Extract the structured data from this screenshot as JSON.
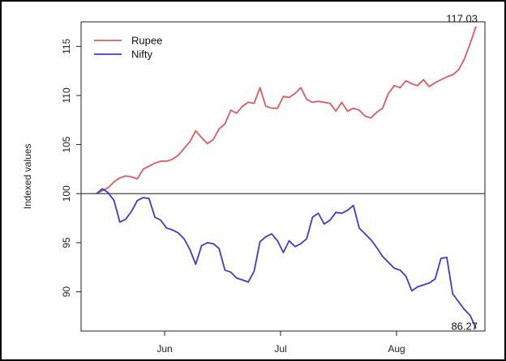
{
  "chart_data": {
    "type": "line",
    "title": "",
    "xlabel": "",
    "ylabel": "Indexed values",
    "x_ticks": [
      "Jun",
      "Jul",
      "Aug"
    ],
    "y_ticks": [
      90,
      95,
      100,
      105,
      110,
      115
    ],
    "ylim": [
      86,
      117.5
    ],
    "reference_line": 100,
    "grid": false,
    "legend_position": "top-left",
    "series": [
      {
        "name": "Rupee",
        "color": "#e0595e",
        "end_label": "117.03",
        "values": [
          100,
          100.3,
          100.6,
          101.2,
          101.6,
          101.8,
          101.7,
          101.5,
          102.5,
          102.8,
          103.1,
          103.3,
          103.3,
          103.5,
          103.9,
          104.6,
          105.3,
          106.4,
          105.7,
          105.1,
          105.5,
          106.6,
          107.1,
          108.5,
          108.2,
          108.9,
          109.3,
          109.2,
          110.8,
          108.9,
          108.7,
          108.7,
          109.9,
          109.8,
          110.2,
          110.8,
          109.6,
          109.3,
          109.4,
          109.3,
          109.2,
          108.4,
          109.3,
          108.4,
          108.7,
          108.5,
          107.9,
          107.7,
          108.3,
          108.7,
          110.2,
          111.0,
          110.8,
          111.5,
          111.2,
          111.0,
          111.6,
          110.9,
          111.3,
          111.6,
          111.9,
          112.1,
          112.6,
          113.7,
          115.3,
          117.03
        ]
      },
      {
        "name": "Nifty",
        "color": "#3b3bd4",
        "end_label": "86.27",
        "values": [
          100,
          100.5,
          100.1,
          99.3,
          97.1,
          97.4,
          98.2,
          99.3,
          99.6,
          99.5,
          97.6,
          97.3,
          96.5,
          96.3,
          96.0,
          95.4,
          94.3,
          92.8,
          94.7,
          95.0,
          94.9,
          94.4,
          92.2,
          92.0,
          91.4,
          91.2,
          91.0,
          92.1,
          95.1,
          95.6,
          95.9,
          95.2,
          94.0,
          95.2,
          94.6,
          94.9,
          95.4,
          97.6,
          98.0,
          96.9,
          97.3,
          98.1,
          98.0,
          98.3,
          98.8,
          96.5,
          95.9,
          95.3,
          94.5,
          93.6,
          93.0,
          92.4,
          92.2,
          91.6,
          90.1,
          90.5,
          90.7,
          90.9,
          91.3,
          93.4,
          93.5,
          89.8,
          89.0,
          88.2,
          87.6,
          86.27
        ]
      }
    ]
  }
}
